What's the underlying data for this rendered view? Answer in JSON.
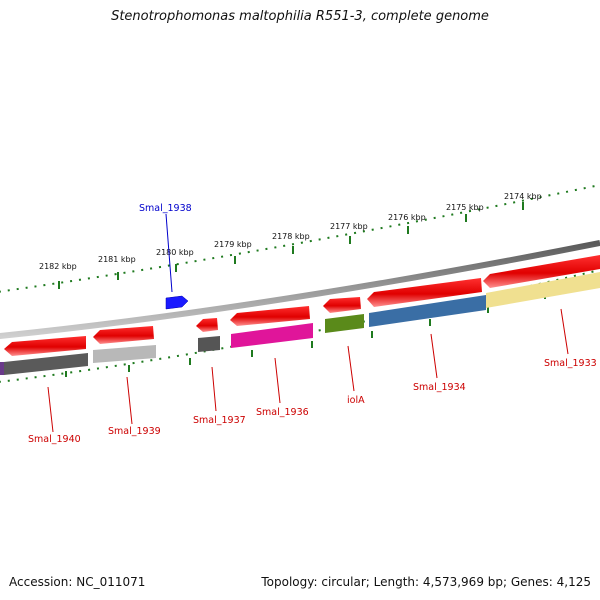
{
  "title": "Stenotrophomonas maltophilia R551-3, complete genome",
  "footer": {
    "accession": "Accession: NC_011071",
    "summary": "Topology: circular; Length: 4,573,969 bp; Genes: 4,125"
  },
  "colors": {
    "backbone": "#7a7a7a",
    "tick": "#1f7a1f",
    "label_red": "#cc0000",
    "label_blue": "#0000cc"
  },
  "scale_labels": [
    "2182 kbp",
    "2181 kbp",
    "2180 kbp",
    "2179 kbp",
    "2178 kbp",
    "2177 kbp",
    "2176 kbp",
    "2175 kbp",
    "2174 kbp"
  ],
  "genes": [
    {
      "name": "Smal_1940",
      "color": "#d00000",
      "label_color": "#cc0000"
    },
    {
      "name": "Smal_1939",
      "color": "#d00000",
      "label_color": "#cc0000"
    },
    {
      "name": "Smal_1938",
      "color": "#1a1aff",
      "label_color": "#0000cc"
    },
    {
      "name": "Smal_1937",
      "color": "#d00000",
      "label_color": "#cc0000"
    },
    {
      "name": "Smal_1936",
      "color": "#d00000",
      "label_color": "#cc0000"
    },
    {
      "name": "iolA",
      "color": "#d00000",
      "label_color": "#cc0000"
    },
    {
      "name": "Smal_1934",
      "color": "#d00000",
      "label_color": "#cc0000"
    },
    {
      "name": "Smal_1933",
      "color": "#d00000",
      "label_color": "#cc0000"
    }
  ],
  "cog_colors": [
    "#5a5a5a",
    "#b8b8b8",
    "#555555",
    "#e0159a",
    "#5a8a1a",
    "#3a6ea5",
    "#f0e090",
    "#6a3a8a"
  ]
}
